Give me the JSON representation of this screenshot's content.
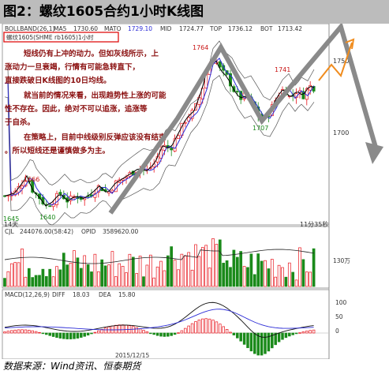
{
  "figure_title": "图2：螺纹1605合约1小时K线图",
  "header": {
    "indicator": "BOLLBAND(26,1)",
    "ma_label": "MA5",
    "ma_value": "1730.60",
    "mato_label": "MATO",
    "mato_value": "1729.10",
    "mid_label": "MID",
    "mid_value": "1724.77",
    "top_label": "TOP",
    "top_value": "1736.12",
    "bot_label": "BOT",
    "bot_value": "1713.42",
    "contract_box": "螺纹1605(SHME rb1605)1小时"
  },
  "annotation": {
    "p1": "短线仍有上冲的动力。但如灰线所示，上涨动力一旦衰竭，行情有可能急转直下，直接跌破日K线图的10日均线。",
    "p2": "就当前的情况来看，出现趋势性上涨的可能性不存在。因此，绝对不可以追涨，追涨等于自杀。",
    "p3": "在策略上，目前中线级别反弹应该没有结束。所以短线还是谨慎做多为主。"
  },
  "price_labels": {
    "high1": "1764",
    "high2": "1741",
    "low_mid": "1707",
    "early_high": "1666",
    "early_low1": "1640",
    "early_low2": "1645",
    "axis_1750": "1750",
    "axis_1700": "1700"
  },
  "bottom_left_label": "14天",
  "time_label": "11分35秒",
  "volume_panel": {
    "name": "CJL",
    "value": "244076.00(58:42)",
    "opid_label": "OPID",
    "opid_value": "3589620.00",
    "axis_label": "130万"
  },
  "macd_panel": {
    "name": "MACD(12,26,9)",
    "diff_label": "DIFF",
    "diff_value": "18.03",
    "dea_label": "DEA",
    "dea_value": "15.80",
    "axis_100": "100",
    "axis_50": "50",
    "axis_0": "0"
  },
  "date_label": "2015/12/15",
  "source": "数据来源：Wind资讯、恒泰期货",
  "colors": {
    "up": "#e8141c",
    "down": "#1a8a1a",
    "boll_band": "#555555",
    "mid_line": "#2b2bd6",
    "ma_line": "#000000",
    "gray_path": "#8a8a8a",
    "orange_path": "#f08c1e",
    "annotation_text": "#8b1010",
    "contract_box_border": "#e01010"
  },
  "chart_data": {
    "type": "candlestick",
    "price_range": [
      1630,
      1775
    ],
    "highlighted_prices": [
      1764,
      1741,
      1707,
      1666,
      1645,
      1640
    ],
    "axis_ticks": [
      1750,
      1700
    ],
    "macd": {
      "diff": 18.03,
      "dea": 15.8,
      "axis_ticks": [
        100,
        50,
        0
      ]
    },
    "volume": {
      "cjl": 244076.0,
      "opid": 3589620.0,
      "axis_tick": "130万"
    }
  }
}
